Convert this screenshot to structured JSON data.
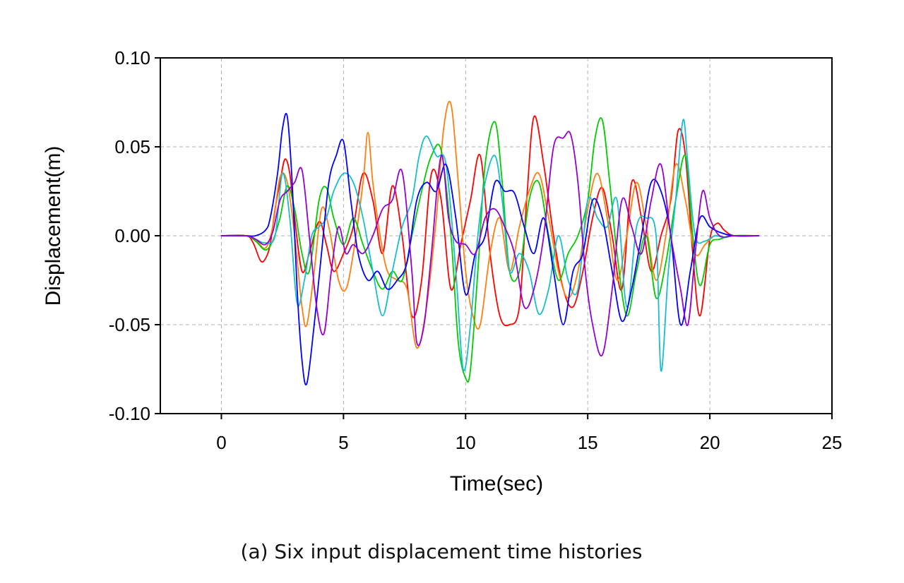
{
  "caption": "(a) Six input displacement time histories",
  "chart_data": {
    "type": "line",
    "xlabel": "Time(sec)",
    "ylabel": "Displacement(m)",
    "xlim": [
      -2.5,
      25
    ],
    "ylim": [
      -0.1,
      0.1
    ],
    "xticks": [
      0,
      5,
      10,
      15,
      20,
      25
    ],
    "xtick_labels": [
      "0",
      "5",
      "10",
      "15",
      "20",
      "25"
    ],
    "yticks": [
      -0.1,
      -0.05,
      0,
      0.05,
      0.1
    ],
    "ytick_labels": [
      "-0.10",
      "-0.05",
      "0.00",
      "0.05",
      "0.10"
    ],
    "grid": true,
    "series": [
      {
        "color": "#ff0000",
        "x": [
          0,
          1.0,
          1.3,
          1.6,
          1.8,
          2.0,
          2.2,
          2.4,
          2.6,
          2.8,
          3.0,
          3.3,
          3.6,
          4.0,
          4.3,
          4.6,
          5.0,
          5.4,
          5.8,
          6.2,
          6.6,
          7.0,
          7.4,
          7.8,
          8.2,
          8.6,
          9.0,
          9.4,
          9.8,
          10.2,
          10.6,
          11.0,
          11.4,
          11.8,
          12.2,
          12.5,
          12.8,
          13.2,
          13.6,
          14.0,
          14.4,
          14.8,
          15.2,
          15.6,
          16.0,
          16.4,
          16.8,
          17.2,
          17.6,
          18.0,
          18.4,
          18.7,
          19.0,
          19.3,
          19.6,
          20.0,
          20.3,
          20.6,
          21.0,
          22.0
        ],
        "y": [
          0,
          0,
          -0.004,
          -0.014,
          -0.013,
          -0.005,
          0.015,
          0.03,
          0.043,
          0.035,
          0.01,
          -0.02,
          -0.01,
          0.008,
          -0.005,
          -0.02,
          -0.01,
          0.005,
          0.035,
          0.02,
          -0.01,
          0.028,
          0.0,
          -0.045,
          -0.025,
          0.035,
          0.02,
          -0.03,
          -0.005,
          0.02,
          0.045,
          -0.01,
          -0.045,
          -0.05,
          -0.04,
          0.02,
          0.067,
          0.04,
          0.0,
          -0.03,
          -0.04,
          -0.02,
          0.01,
          0.027,
          0.0,
          -0.03,
          0.03,
          0.01,
          -0.02,
          0.0,
          0.02,
          0.059,
          0.045,
          -0.01,
          -0.045,
          -0.002,
          0.007,
          0.003,
          0,
          0
        ]
      },
      {
        "color": "#ff7f0e",
        "x": [
          0,
          1.0,
          1.4,
          1.8,
          2.1,
          2.4,
          2.7,
          3.0,
          3.3,
          3.5,
          3.8,
          4.1,
          4.4,
          4.8,
          5.1,
          5.4,
          5.8,
          6.0,
          6.2,
          6.5,
          6.8,
          7.2,
          7.6,
          8.0,
          8.4,
          8.8,
          9.1,
          9.4,
          9.7,
          10.0,
          10.3,
          10.6,
          11.0,
          11.4,
          11.8,
          12.2,
          12.6,
          13.0,
          13.4,
          13.8,
          14.2,
          14.6,
          15.0,
          15.4,
          15.8,
          16.2,
          16.6,
          17.0,
          17.4,
          17.8,
          18.2,
          18.6,
          19.0,
          19.4,
          19.8,
          20.2,
          20.6,
          21.0,
          22.0
        ],
        "y": [
          0,
          0,
          -0.002,
          -0.007,
          0.005,
          0.033,
          0.03,
          0.0,
          -0.04,
          -0.05,
          -0.02,
          0.015,
          0.005,
          -0.025,
          -0.03,
          -0.01,
          0.03,
          0.058,
          0.03,
          0.0,
          -0.02,
          -0.025,
          -0.03,
          -0.063,
          -0.04,
          0.01,
          0.06,
          0.074,
          0.03,
          -0.02,
          -0.045,
          -0.05,
          -0.01,
          0.01,
          -0.02,
          0.005,
          0.025,
          0.035,
          0.01,
          -0.02,
          -0.035,
          -0.02,
          0.015,
          0.035,
          0.01,
          -0.025,
          0.0,
          0.03,
          0.005,
          -0.025,
          0.0,
          0.04,
          0.02,
          -0.01,
          -0.005,
          0.0,
          -0.001,
          0,
          0
        ]
      },
      {
        "color": "#00cc00",
        "x": [
          0,
          1.0,
          1.4,
          1.8,
          2.1,
          2.4,
          2.7,
          3.0,
          3.3,
          3.6,
          4.0,
          4.3,
          4.6,
          5.0,
          5.4,
          5.8,
          6.2,
          6.6,
          7.0,
          7.4,
          7.8,
          8.2,
          8.6,
          9.0,
          9.4,
          9.7,
          10.0,
          10.2,
          10.5,
          10.8,
          11.2,
          11.5,
          11.8,
          12.2,
          12.6,
          13.0,
          13.4,
          13.8,
          14.2,
          14.6,
          15.0,
          15.3,
          15.6,
          15.9,
          16.2,
          16.6,
          17.0,
          17.4,
          17.8,
          18.2,
          18.6,
          19.0,
          19.3,
          19.6,
          20.0,
          20.4,
          21.0,
          22.0
        ],
        "y": [
          0,
          0,
          -0.003,
          -0.008,
          -0.003,
          0.01,
          0.028,
          0.015,
          -0.01,
          -0.02,
          0.02,
          0.027,
          0.01,
          -0.005,
          0.01,
          -0.005,
          -0.02,
          -0.03,
          -0.02,
          -0.025,
          0.0,
          0.025,
          0.045,
          0.048,
          0.0,
          -0.06,
          -0.08,
          -0.075,
          -0.02,
          0.04,
          0.064,
          0.03,
          -0.02,
          -0.02,
          0.02,
          0.03,
          0.0,
          -0.025,
          -0.01,
          0.0,
          0.02,
          0.055,
          0.065,
          0.03,
          -0.01,
          -0.045,
          -0.02,
          0.0,
          -0.035,
          -0.015,
          0.02,
          0.045,
          0.0,
          -0.028,
          -0.005,
          -0.002,
          0,
          0
        ]
      },
      {
        "color": "#17becf",
        "x": [
          0,
          1.0,
          1.4,
          1.8,
          2.2,
          2.5,
          2.8,
          3.1,
          3.4,
          3.7,
          4.0,
          4.3,
          4.6,
          5.0,
          5.4,
          5.8,
          6.2,
          6.6,
          7.0,
          7.4,
          7.8,
          8.1,
          8.4,
          8.8,
          9.2,
          9.6,
          9.9,
          10.2,
          10.5,
          10.8,
          11.2,
          11.5,
          11.8,
          12.2,
          12.6,
          13.0,
          13.4,
          13.8,
          14.2,
          14.6,
          15.0,
          15.4,
          15.8,
          16.2,
          16.6,
          17.0,
          17.4,
          17.8,
          18.0,
          18.3,
          18.6,
          18.9,
          19.1,
          19.4,
          19.8,
          20.2,
          20.6,
          21.0,
          22.0
        ],
        "y": [
          0,
          0,
          -0.002,
          -0.004,
          0.0,
          0.035,
          0.01,
          -0.038,
          -0.025,
          0.0,
          0.005,
          0.01,
          0.025,
          0.035,
          0.03,
          0.01,
          -0.02,
          -0.045,
          -0.02,
          0.005,
          0.02,
          0.045,
          0.056,
          0.045,
          0.04,
          -0.02,
          -0.075,
          -0.05,
          0.0,
          0.03,
          0.045,
          0.02,
          -0.02,
          -0.01,
          -0.02,
          -0.044,
          -0.03,
          0.0,
          -0.025,
          -0.03,
          0.02,
          0.01,
          0.005,
          0.02,
          -0.04,
          0.005,
          0.01,
          0.0,
          -0.076,
          -0.02,
          0.02,
          0.065,
          0.04,
          0.0,
          -0.003,
          0.0,
          -0.001,
          0,
          0
        ]
      },
      {
        "color": "#0000ff",
        "x": [
          0,
          1.0,
          1.4,
          1.8,
          2.0,
          2.3,
          2.5,
          2.7,
          2.9,
          3.1,
          3.3,
          3.5,
          3.8,
          4.1,
          4.4,
          4.7,
          5.0,
          5.3,
          5.6,
          6.0,
          6.4,
          6.8,
          7.2,
          7.6,
          8.0,
          8.4,
          8.8,
          9.2,
          9.6,
          10.0,
          10.4,
          10.8,
          11.2,
          11.6,
          12.0,
          12.4,
          12.8,
          13.2,
          13.6,
          14.0,
          14.4,
          14.8,
          15.2,
          15.6,
          16.0,
          16.4,
          16.8,
          17.2,
          17.6,
          18.0,
          18.4,
          18.8,
          19.2,
          19.6,
          20.0,
          20.4,
          21.0,
          22.0
        ],
        "y": [
          0,
          0,
          0.0,
          0.003,
          0.01,
          0.035,
          0.06,
          0.067,
          0.03,
          -0.03,
          -0.07,
          -0.083,
          -0.05,
          -0.01,
          0.03,
          0.045,
          0.053,
          0.02,
          -0.01,
          -0.025,
          -0.02,
          -0.03,
          -0.025,
          -0.015,
          0.02,
          0.03,
          0.025,
          0.04,
          0.01,
          -0.033,
          -0.01,
          0.0,
          0.03,
          0.025,
          0.024,
          0.005,
          -0.01,
          0.01,
          -0.02,
          -0.05,
          -0.02,
          -0.01,
          0.02,
          0.01,
          -0.02,
          -0.048,
          -0.03,
          0.0,
          0.03,
          0.025,
          0.0,
          -0.05,
          -0.02,
          0.01,
          0.005,
          0.002,
          0,
          0
        ]
      },
      {
        "color": "#9400d3",
        "x": [
          0,
          1.0,
          1.4,
          1.8,
          2.1,
          2.4,
          2.7,
          3.0,
          3.3,
          3.6,
          3.9,
          4.2,
          4.5,
          4.8,
          5.1,
          5.4,
          5.8,
          6.2,
          6.6,
          7.0,
          7.4,
          7.8,
          8.0,
          8.3,
          8.6,
          9.0,
          9.3,
          9.6,
          10.0,
          10.4,
          10.8,
          11.2,
          11.6,
          12.0,
          12.4,
          12.8,
          13.2,
          13.6,
          14.0,
          14.3,
          14.6,
          14.9,
          15.2,
          15.6,
          16.0,
          16.4,
          16.8,
          17.2,
          17.6,
          18.0,
          18.4,
          18.8,
          19.1,
          19.4,
          19.7,
          20.0,
          20.4,
          21.0,
          22.0
        ],
        "y": [
          0,
          0,
          -0.002,
          -0.005,
          0.002,
          0.02,
          0.025,
          0.03,
          0.037,
          0.0,
          -0.04,
          -0.055,
          -0.02,
          0.005,
          -0.01,
          -0.005,
          -0.01,
          0.0,
          0.015,
          0.02,
          0.036,
          -0.02,
          -0.06,
          -0.05,
          -0.01,
          0.045,
          0.01,
          -0.003,
          -0.005,
          -0.01,
          0.01,
          0.015,
          0.005,
          -0.01,
          -0.04,
          -0.03,
          0.0,
          0.05,
          0.055,
          0.057,
          0.03,
          -0.02,
          -0.05,
          -0.067,
          -0.03,
          0.02,
          0.005,
          -0.01,
          0.02,
          0.04,
          0.0,
          -0.03,
          -0.05,
          -0.01,
          0.025,
          0.01,
          0.0,
          0,
          0
        ]
      }
    ]
  }
}
